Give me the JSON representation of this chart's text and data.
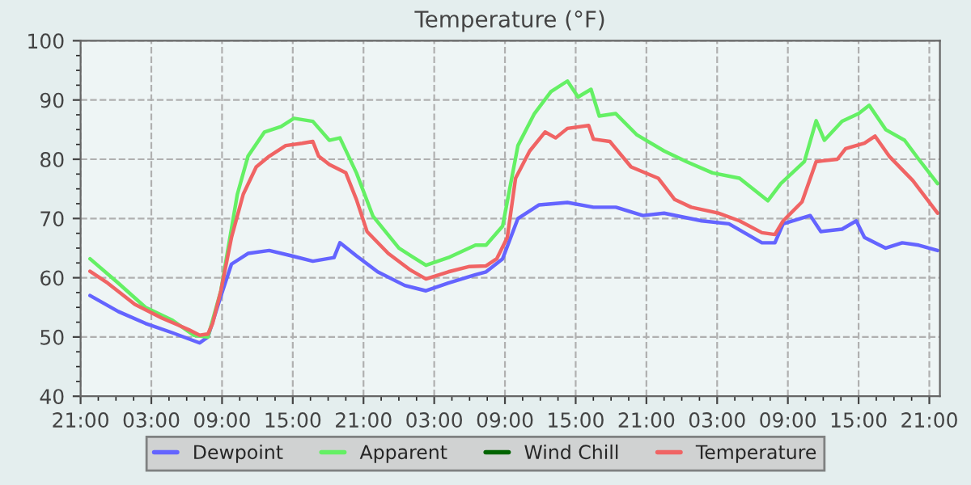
{
  "chart_data": {
    "type": "line",
    "title": "Temperature (°F)",
    "xlim": [
      "2000-01-01T21:00",
      "2000-01-04T21:54"
    ],
    "xticks": [
      {
        "value": "2000-01-01T21:00",
        "label": "21:00"
      },
      {
        "value": "2000-01-02T03:00",
        "label": "03:00"
      },
      {
        "value": "2000-01-02T09:00",
        "label": "09:00"
      },
      {
        "value": "2000-01-02T15:00",
        "label": "15:00"
      },
      {
        "value": "2000-01-02T21:00",
        "label": "21:00"
      },
      {
        "value": "2000-01-03T03:00",
        "label": "03:00"
      },
      {
        "value": "2000-01-03T09:00",
        "label": "09:00"
      },
      {
        "value": "2000-01-03T15:00",
        "label": "15:00"
      },
      {
        "value": "2000-01-03T21:00",
        "label": "21:00"
      },
      {
        "value": "2000-01-04T03:00",
        "label": "03:00"
      },
      {
        "value": "2000-01-04T09:00",
        "label": "09:00"
      },
      {
        "value": "2000-01-04T15:00",
        "label": "15:00"
      },
      {
        "value": "2000-01-04T21:00",
        "label": "21:00"
      }
    ],
    "ylim": [
      40,
      100
    ],
    "yticks": [
      40,
      50,
      60,
      70,
      80,
      90,
      100
    ],
    "grid": true,
    "legend": "bottom",
    "series": [
      {
        "name": "Dewpoint",
        "color": "#6464ff",
        "x": [
          "2000-01-01T21:48",
          "2000-01-02T00:12",
          "2000-01-02T02:30",
          "2000-01-02T04:48",
          "2000-01-02T07:06",
          "2000-01-02T07:48",
          "2000-01-02T08:54",
          "2000-01-02T09:48",
          "2000-01-02T11:12",
          "2000-01-02T13:00",
          "2000-01-02T14:54",
          "2000-01-02T16:42",
          "2000-01-02T18:30",
          "2000-01-02T19:00",
          "2000-01-02T20:24",
          "2000-01-02T22:12",
          "2000-01-03T00:30",
          "2000-01-03T02:18",
          "2000-01-03T04:12",
          "2000-01-03T06:30",
          "2000-01-03T07:24",
          "2000-01-03T08:48",
          "2000-01-03T10:06",
          "2000-01-03T11:54",
          "2000-01-03T14:18",
          "2000-01-03T16:30",
          "2000-01-03T18:24",
          "2000-01-03T20:42",
          "2000-01-03T22:30",
          "2000-01-04T01:42",
          "2000-01-04T04:00",
          "2000-01-04T06:48",
          "2000-01-04T07:54",
          "2000-01-04T08:36",
          "2000-01-04T10:54",
          "2000-01-04T11:48",
          "2000-01-04T13:36",
          "2000-01-04T14:48",
          "2000-01-04T15:30",
          "2000-01-04T17:18",
          "2000-01-04T18:42",
          "2000-01-04T20:06",
          "2000-01-04T21:42"
        ],
        "values": [
          57.0,
          54.3,
          52.3,
          50.7,
          49.0,
          50.0,
          56.9,
          62.3,
          64.1,
          64.6,
          63.7,
          62.8,
          63.4,
          65.9,
          63.7,
          61.0,
          58.7,
          57.8,
          59.1,
          60.5,
          61.0,
          63.2,
          70.0,
          72.3,
          72.7,
          71.9,
          71.9,
          70.5,
          70.9,
          69.6,
          69.1,
          65.9,
          65.9,
          69.1,
          70.5,
          67.8,
          68.2,
          69.6,
          66.8,
          65.0,
          65.9,
          65.5,
          64.6
        ]
      },
      {
        "name": "Apparent",
        "color": "#64f064",
        "x": [
          "2000-01-01T21:48",
          "2000-01-02T00:12",
          "2000-01-02T02:30",
          "2000-01-02T04:48",
          "2000-01-02T06:36",
          "2000-01-02T07:48",
          "2000-01-02T08:54",
          "2000-01-02T10:18",
          "2000-01-02T11:12",
          "2000-01-02T12:36",
          "2000-01-02T14:00",
          "2000-01-02T15:06",
          "2000-01-02T16:42",
          "2000-01-02T18:06",
          "2000-01-02T19:00",
          "2000-01-02T20:24",
          "2000-01-02T21:48",
          "2000-01-03T00:00",
          "2000-01-03T02:18",
          "2000-01-03T04:12",
          "2000-01-03T06:30",
          "2000-01-03T07:24",
          "2000-01-03T08:48",
          "2000-01-03T10:06",
          "2000-01-03T11:30",
          "2000-01-03T12:54",
          "2000-01-03T14:18",
          "2000-01-03T15:12",
          "2000-01-03T16:18",
          "2000-01-03T17:00",
          "2000-01-03T18:24",
          "2000-01-03T20:12",
          "2000-01-03T22:30",
          "2000-01-04T00:24",
          "2000-01-04T02:36",
          "2000-01-04T04:54",
          "2000-01-04T07:18",
          "2000-01-04T08:24",
          "2000-01-04T10:24",
          "2000-01-04T11:24",
          "2000-01-04T12:06",
          "2000-01-04T13:36",
          "2000-01-04T15:00",
          "2000-01-04T15:54",
          "2000-01-04T17:18",
          "2000-01-04T18:54",
          "2000-01-04T20:06",
          "2000-01-04T21:42"
        ],
        "values": [
          63.2,
          59.1,
          55.0,
          52.8,
          50.3,
          50.0,
          57.8,
          74.1,
          80.5,
          84.6,
          85.5,
          86.9,
          86.4,
          83.2,
          83.6,
          77.7,
          70.4,
          65.0,
          62.1,
          63.4,
          65.5,
          65.5,
          68.7,
          82.3,
          87.7,
          91.4,
          93.2,
          90.5,
          91.8,
          87.3,
          87.7,
          84.1,
          81.4,
          79.6,
          77.7,
          76.8,
          73.0,
          75.9,
          79.6,
          86.5,
          83.2,
          86.4,
          87.7,
          89.1,
          85.0,
          83.2,
          80.0,
          75.9
        ]
      },
      {
        "name": "Wind Chill",
        "color": "#006400"
      },
      {
        "name": "Temperature",
        "color": "#f06464",
        "x": [
          "2000-01-01T21:48",
          "2000-01-01T23:18",
          "2000-01-02T01:36",
          "2000-01-02T03:54",
          "2000-01-02T05:18",
          "2000-01-02T06:12",
          "2000-01-02T07:06",
          "2000-01-02T07:48",
          "2000-01-02T08:12",
          "2000-01-02T08:54",
          "2000-01-02T09:48",
          "2000-01-02T10:48",
          "2000-01-02T11:54",
          "2000-01-02T13:00",
          "2000-01-02T14:24",
          "2000-01-02T15:48",
          "2000-01-02T16:42",
          "2000-01-02T17:12",
          "2000-01-02T18:06",
          "2000-01-02T19:30",
          "2000-01-02T20:24",
          "2000-01-02T21:18",
          "2000-01-02T23:06",
          "2000-01-03T00:54",
          "2000-01-03T02:18",
          "2000-01-03T04:12",
          "2000-01-03T06:00",
          "2000-01-03T07:24",
          "2000-01-03T08:18",
          "2000-01-03T09:12",
          "2000-01-03T09:54",
          "2000-01-03T11:06",
          "2000-01-03T12:24",
          "2000-01-03T13:18",
          "2000-01-03T14:18",
          "2000-01-03T16:06",
          "2000-01-03T16:30",
          "2000-01-03T17:54",
          "2000-01-03T19:42",
          "2000-01-03T22:00",
          "2000-01-03T23:24",
          "2000-01-04T00:48",
          "2000-01-04T03:06",
          "2000-01-04T04:54",
          "2000-01-04T06:48",
          "2000-01-04T07:54",
          "2000-01-04T08:36",
          "2000-01-04T10:12",
          "2000-01-04T11:24",
          "2000-01-04T13:12",
          "2000-01-04T13:54",
          "2000-01-04T15:30",
          "2000-01-04T16:24",
          "2000-01-04T17:36",
          "2000-01-04T19:36",
          "2000-01-04T21:42"
        ],
        "values": [
          61.1,
          59.1,
          55.5,
          53.2,
          52.0,
          51.2,
          50.3,
          50.5,
          52.3,
          57.8,
          66.8,
          74.1,
          78.7,
          80.5,
          82.3,
          82.7,
          83.0,
          80.5,
          79.1,
          77.7,
          73.2,
          67.8,
          64.1,
          61.4,
          59.8,
          61.0,
          61.9,
          62.0,
          63.2,
          66.8,
          76.8,
          81.4,
          84.6,
          83.6,
          85.2,
          85.7,
          83.4,
          83.0,
          78.7,
          76.8,
          73.2,
          71.9,
          70.9,
          69.6,
          67.6,
          67.3,
          69.6,
          72.8,
          79.6,
          80.0,
          81.8,
          82.7,
          83.9,
          80.5,
          76.4,
          70.9
        ]
      }
    ]
  }
}
